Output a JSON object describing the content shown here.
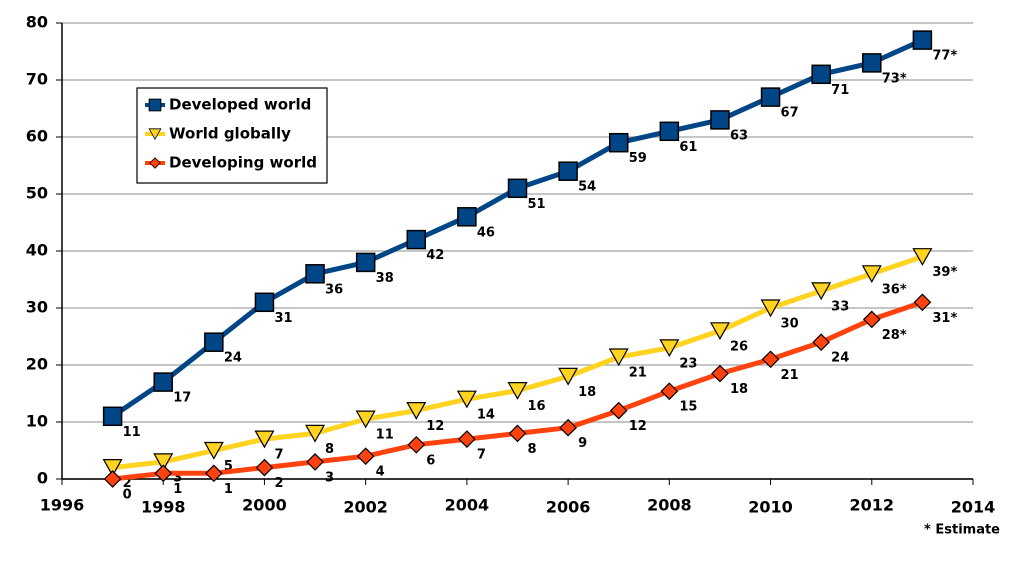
{
  "chart_data": {
    "type": "line",
    "x": [
      1997,
      1998,
      1999,
      2000,
      2001,
      2002,
      2003,
      2004,
      2005,
      2006,
      2007,
      2008,
      2009,
      2010,
      2011,
      2012,
      2013
    ],
    "series": [
      {
        "name": "Developed world",
        "color": "#004586",
        "marker": "square",
        "values": [
          11,
          17,
          24,
          31,
          36,
          38,
          42,
          46,
          51,
          54,
          59,
          61,
          63,
          67,
          71,
          73,
          77
        ],
        "value_labels": [
          "11",
          "17",
          "24",
          "31",
          "36",
          "38",
          "42",
          "46",
          "51",
          "54",
          "59",
          "61",
          "63",
          "67",
          "71",
          "73*",
          "77*"
        ]
      },
      {
        "name": "World globally",
        "color": "#ffd320",
        "marker": "triangle-down",
        "values": [
          2,
          3,
          5,
          7,
          8,
          10.5,
          12,
          14,
          15.5,
          18,
          21.4,
          23,
          26,
          30,
          33,
          36,
          39
        ],
        "value_labels": [
          "2",
          "3",
          "5",
          "7",
          "8",
          "11",
          "12",
          "14",
          "16",
          "18",
          "21",
          "23",
          "26",
          "30",
          "33",
          "36*",
          "39*"
        ]
      },
      {
        "name": "Developing world",
        "color": "#ff420e",
        "marker": "diamond",
        "values": [
          0,
          1,
          1,
          2,
          3,
          4,
          6,
          7,
          8,
          9,
          12,
          15.4,
          18.5,
          21,
          24,
          28,
          31
        ],
        "value_labels": [
          "0",
          "1",
          "1",
          "2",
          "3",
          "4",
          "6",
          "7",
          "8",
          "9",
          "12",
          "15",
          "18",
          "21",
          "24",
          "28*",
          "31*"
        ]
      }
    ],
    "xlim": [
      1996,
      2014
    ],
    "xticks": [
      1996,
      1998,
      2000,
      2002,
      2004,
      2006,
      2008,
      2010,
      2012,
      2014
    ],
    "ylim": [
      0,
      80
    ],
    "yticks": [
      0,
      10,
      20,
      30,
      40,
      50,
      60,
      70,
      80
    ],
    "grid": true,
    "legend": "upper left",
    "annotation": "* Estimate"
  }
}
